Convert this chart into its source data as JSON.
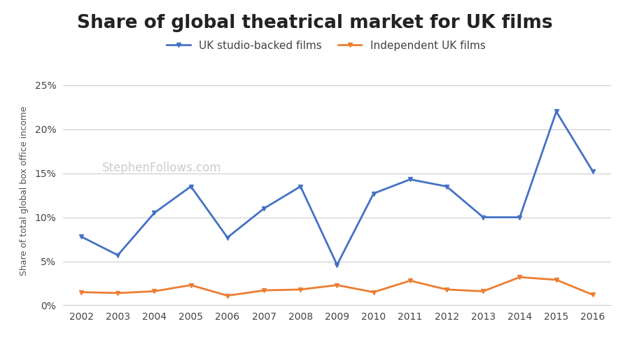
{
  "title": "Share of global theatrical market for UK films",
  "ylabel": "Share of total global box office income",
  "years": [
    2002,
    2003,
    2004,
    2005,
    2006,
    2007,
    2008,
    2009,
    2010,
    2011,
    2012,
    2013,
    2014,
    2015,
    2016
  ],
  "studio_values": [
    7.8,
    5.7,
    10.5,
    13.5,
    7.7,
    11.0,
    13.5,
    4.6,
    12.7,
    14.3,
    13.5,
    10.0,
    10.0,
    22.0,
    15.2
  ],
  "indie_values": [
    1.5,
    1.4,
    1.6,
    2.3,
    1.1,
    1.7,
    1.8,
    2.3,
    1.5,
    2.8,
    1.8,
    1.6,
    3.2,
    2.9,
    1.2
  ],
  "studio_color": "#4472C4",
  "indie_color": "#ED7D31",
  "studio_label": "UK studio-backed films",
  "indie_label": "Independent UK films",
  "watermark": "StephenFollows.com",
  "ylim": [
    0,
    26
  ],
  "yticks": [
    0,
    5,
    10,
    15,
    20,
    25
  ],
  "background_color": "#ffffff",
  "grid_color": "#cccccc",
  "title_fontsize": 19,
  "legend_fontsize": 11,
  "axis_label_fontsize": 9,
  "tick_fontsize": 10,
  "watermark_color": "#cccccc",
  "watermark_fontsize": 12
}
